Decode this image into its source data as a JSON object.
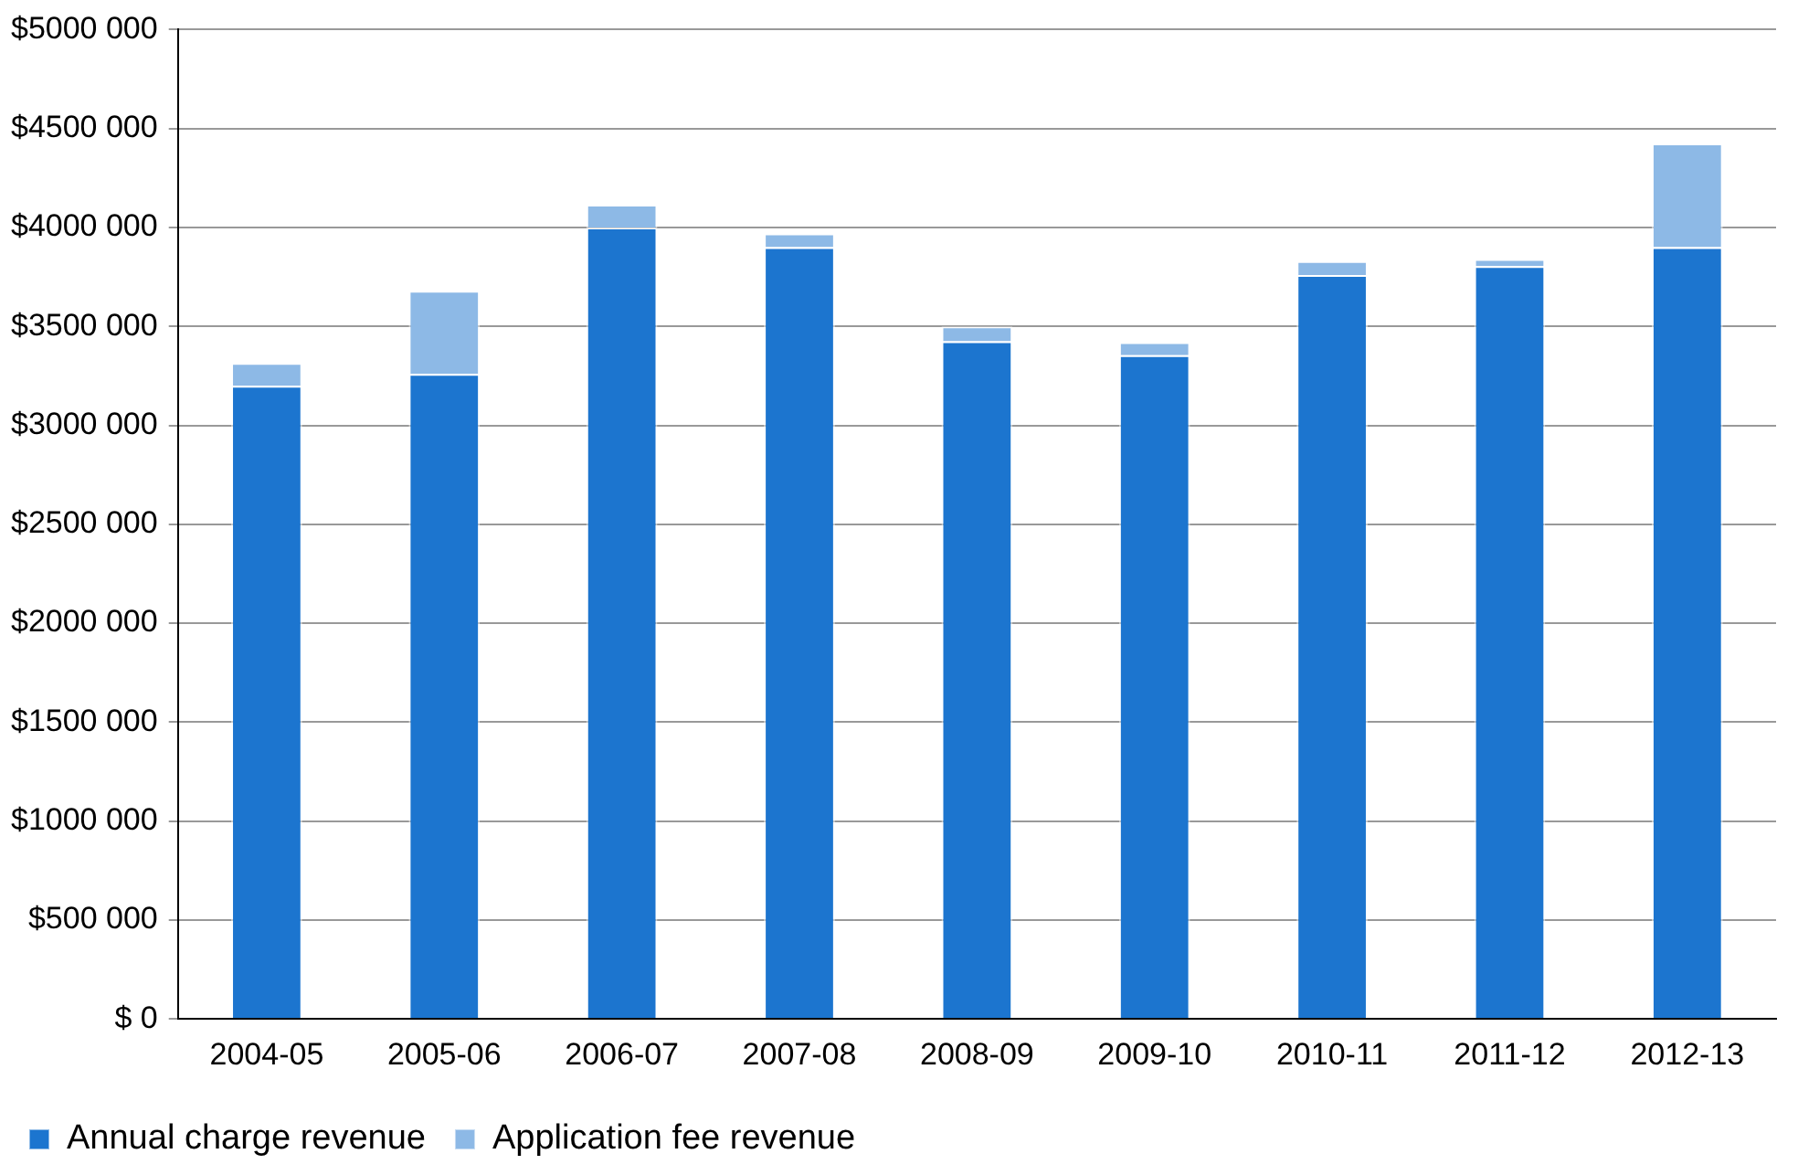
{
  "chart_data": {
    "type": "bar",
    "stacked": true,
    "categories": [
      "2004-05",
      "2005-06",
      "2006-07",
      "2007-08",
      "2008-09",
      "2009-10",
      "2010-11",
      "2011-12",
      "2012-13"
    ],
    "series": [
      {
        "name": "Annual charge revenue",
        "color": "#1c75cf",
        "values": [
          3200000,
          3260000,
          4000000,
          3900000,
          3425000,
          3355000,
          3760000,
          3805000,
          3900000
        ]
      },
      {
        "name": "Application fee revenue",
        "color": "#8db9e6",
        "values": [
          115000,
          420000,
          115000,
          70000,
          75000,
          65000,
          70000,
          35000,
          525000
        ]
      }
    ],
    "ylim": [
      0,
      5000000
    ],
    "yticks": [
      {
        "value": 0,
        "label": "$ 0"
      },
      {
        "value": 500000,
        "label": "$500 000"
      },
      {
        "value": 1000000,
        "label": "$1000 000"
      },
      {
        "value": 1500000,
        "label": "$1500 000"
      },
      {
        "value": 2000000,
        "label": "$2000 000"
      },
      {
        "value": 2500000,
        "label": "$2500 000"
      },
      {
        "value": 3000000,
        "label": "$3000 000"
      },
      {
        "value": 3500000,
        "label": "$3500 000"
      },
      {
        "value": 4000000,
        "label": "$4000 000"
      },
      {
        "value": 4500000,
        "label": "$4500 000"
      },
      {
        "value": 5000000,
        "label": "$5000 000"
      }
    ],
    "grid": "y",
    "legend": "bottom left"
  }
}
